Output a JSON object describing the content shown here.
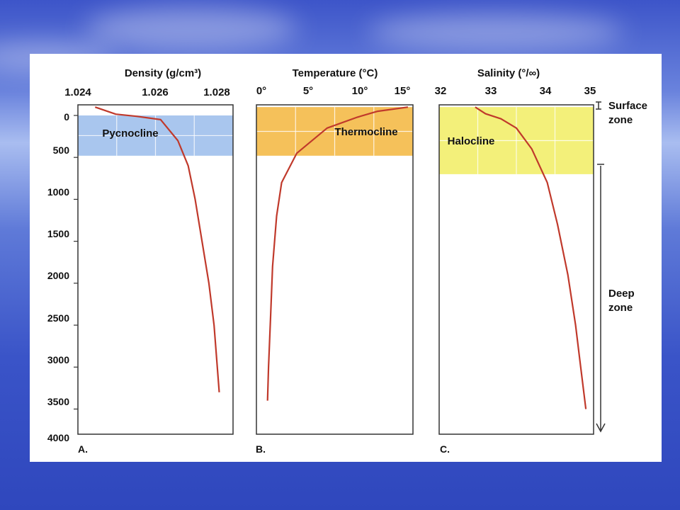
{
  "background": {
    "colors": [
      "#3d55c9",
      "#a9bdf0",
      "#2f47bd"
    ]
  },
  "colors": {
    "curve": "#c0392b",
    "blue_band": "#a9c6ee",
    "orange_band": "#f5c15a",
    "yellow_band": "#f3f07a",
    "grid": "#ffffff"
  },
  "depth_axis": {
    "ticks": [
      "0",
      "500",
      "1000",
      "1500",
      "2000",
      "2500",
      "3000",
      "3500",
      "4000"
    ],
    "range": [
      0,
      4000
    ]
  },
  "zones": {
    "surface_label": "Surface zone",
    "deep_label": "Deep zone"
  },
  "chart_data": [
    {
      "type": "line",
      "panel_letter": "A.",
      "title": "Density (g/cm³)",
      "xlabel": "Density (g/cm³)",
      "ylabel": "",
      "x_ticks": [
        "1.024",
        "1.026",
        "1.028"
      ],
      "xlim": [
        1.024,
        1.0285
      ],
      "ylim": [
        0,
        4000
      ],
      "band": {
        "label": "Pycnocline",
        "depth_range": [
          0,
          480
        ],
        "color": "#a9c6ee"
      },
      "series": [
        {
          "x": [
            1.0245,
            1.0251,
            1.0257,
            1.0264,
            1.0269,
            1.0272,
            1.0274,
            1.0276,
            1.0278,
            1.02795,
            1.0281
          ],
          "y": [
            -100,
            -15,
            10,
            50,
            300,
            600,
            1000,
            1500,
            2000,
            2500,
            3300
          ]
        }
      ]
    },
    {
      "type": "line",
      "panel_letter": "B.",
      "title": "Temperature (°C)",
      "xlabel": "Temperature (°C)",
      "ylabel": "",
      "x_ticks": [
        "0°",
        "5°",
        "10°",
        "15°"
      ],
      "xlim": [
        0,
        15.5
      ],
      "ylim": [
        0,
        4000
      ],
      "band": {
        "label": "Thermocline",
        "depth_range": [
          -100,
          480
        ],
        "color": "#f5c15a"
      },
      "series": [
        {
          "x": [
            15,
            12,
            10,
            7,
            4,
            2.5,
            2,
            1.6,
            1.4,
            1.2,
            1.1
          ],
          "y": [
            -100,
            -50,
            20,
            150,
            450,
            800,
            1200,
            1800,
            2400,
            3000,
            3400
          ]
        }
      ]
    },
    {
      "type": "line",
      "panel_letter": "C.",
      "title": "Salinity (°/∞)",
      "xlabel": "Salinity (°/∞)",
      "ylabel": "",
      "x_ticks": [
        "32",
        "33",
        "34",
        "35"
      ],
      "xlim": [
        32,
        35
      ],
      "ylim": [
        0,
        4000
      ],
      "band": {
        "label": "Halocline",
        "depth_range": [
          -100,
          700
        ],
        "color": "#f3f07a"
      },
      "series": [
        {
          "x": [
            32.7,
            32.9,
            33.2,
            33.5,
            33.8,
            34.1,
            34.3,
            34.5,
            34.65,
            34.75,
            34.85
          ],
          "y": [
            -100,
            -20,
            40,
            150,
            400,
            800,
            1300,
            1900,
            2500,
            3000,
            3500
          ]
        }
      ]
    }
  ]
}
